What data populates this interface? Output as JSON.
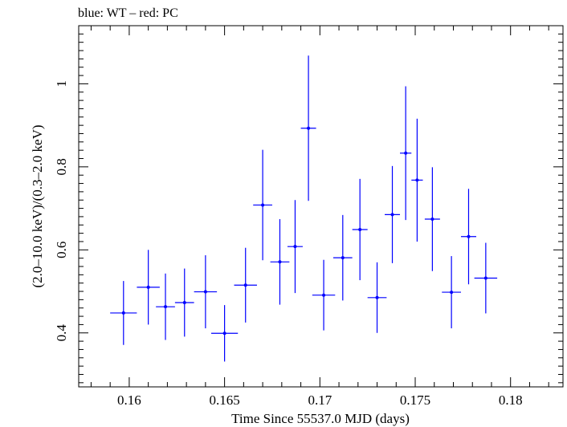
{
  "chart_data": {
    "type": "scatter",
    "title": "blue: WT – red: PC",
    "xlabel": "Time Since 55537.0 MJD (days)",
    "ylabel": "(2.0–10.0 keV)/(0.3–2.0 keV)",
    "xlim": [
      0.15735,
      0.18275
    ],
    "ylim": [
      0.27,
      1.14
    ],
    "x_ticks": [
      0.16,
      0.165,
      0.17,
      0.175,
      0.18
    ],
    "x_tick_labels": [
      "0.16",
      "0.165",
      "0.17",
      "0.175",
      "0.18"
    ],
    "y_ticks": [
      0.4,
      0.6,
      0.8,
      1.0
    ],
    "y_tick_labels": [
      "0.4",
      "0.6",
      "0.8",
      "1"
    ],
    "grid": false,
    "series": [
      {
        "color": "#0000ff",
        "points": [
          {
            "x": 0.1597,
            "xerr": 0.0007,
            "y": 0.448,
            "yerr_low": 0.077,
            "yerr_high": 0.077
          },
          {
            "x": 0.161,
            "xerr": 0.0006,
            "y": 0.51,
            "yerr_low": 0.09,
            "yerr_high": 0.09
          },
          {
            "x": 0.1619,
            "xerr": 0.0005,
            "y": 0.463,
            "yerr_low": 0.08,
            "yerr_high": 0.08
          },
          {
            "x": 0.1629,
            "xerr": 0.0005,
            "y": 0.473,
            "yerr_low": 0.082,
            "yerr_high": 0.082
          },
          {
            "x": 0.164,
            "xerr": 0.0006,
            "y": 0.499,
            "yerr_low": 0.088,
            "yerr_high": 0.088
          },
          {
            "x": 0.165,
            "xerr": 0.0007,
            "y": 0.399,
            "yerr_low": 0.068,
            "yerr_high": 0.068
          },
          {
            "x": 0.1661,
            "xerr": 0.0006,
            "y": 0.515,
            "yerr_low": 0.09,
            "yerr_high": 0.09
          },
          {
            "x": 0.167,
            "xerr": 0.0005,
            "y": 0.708,
            "yerr_low": 0.133,
            "yerr_high": 0.133
          },
          {
            "x": 0.1679,
            "xerr": 0.0005,
            "y": 0.571,
            "yerr_low": 0.103,
            "yerr_high": 0.103
          },
          {
            "x": 0.1687,
            "xerr": 0.0004,
            "y": 0.608,
            "yerr_low": 0.112,
            "yerr_high": 0.112
          },
          {
            "x": 0.1694,
            "xerr": 0.0004,
            "y": 0.893,
            "yerr_low": 0.175,
            "yerr_high": 0.175
          },
          {
            "x": 0.1702,
            "xerr": 0.0006,
            "y": 0.491,
            "yerr_low": 0.085,
            "yerr_high": 0.085
          },
          {
            "x": 0.1712,
            "xerr": 0.0005,
            "y": 0.581,
            "yerr_low": 0.103,
            "yerr_high": 0.103
          },
          {
            "x": 0.1721,
            "xerr": 0.0004,
            "y": 0.649,
            "yerr_low": 0.122,
            "yerr_high": 0.122
          },
          {
            "x": 0.173,
            "xerr": 0.0005,
            "y": 0.485,
            "yerr_low": 0.085,
            "yerr_high": 0.085
          },
          {
            "x": 0.1738,
            "xerr": 0.0004,
            "y": 0.685,
            "yerr_low": 0.117,
            "yerr_high": 0.117
          },
          {
            "x": 0.1745,
            "xerr": 0.0003,
            "y": 0.833,
            "yerr_low": 0.161,
            "yerr_high": 0.161
          },
          {
            "x": 0.1751,
            "xerr": 0.0003,
            "y": 0.768,
            "yerr_low": 0.148,
            "yerr_high": 0.148
          },
          {
            "x": 0.1759,
            "xerr": 0.0004,
            "y": 0.674,
            "yerr_low": 0.125,
            "yerr_high": 0.125
          },
          {
            "x": 0.1769,
            "xerr": 0.0005,
            "y": 0.498,
            "yerr_low": 0.087,
            "yerr_high": 0.087
          },
          {
            "x": 0.1778,
            "xerr": 0.0004,
            "y": 0.632,
            "yerr_low": 0.115,
            "yerr_high": 0.115
          },
          {
            "x": 0.1787,
            "xerr": 0.0006,
            "y": 0.532,
            "yerr_low": 0.085,
            "yerr_high": 0.085
          }
        ]
      }
    ]
  }
}
